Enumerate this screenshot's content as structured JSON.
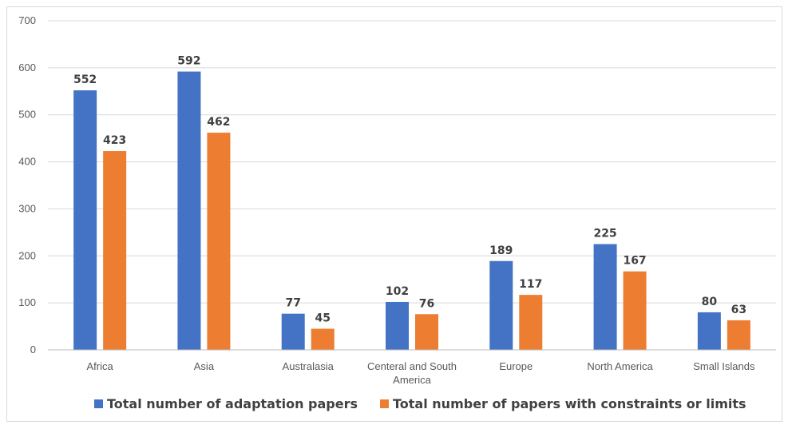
{
  "chart_data": {
    "type": "bar",
    "title": "",
    "xlabel": "",
    "ylabel": "",
    "categories": [
      [
        "Africa"
      ],
      [
        "Asia"
      ],
      [
        "Australasia"
      ],
      [
        "Centeral and South",
        "America"
      ],
      [
        "Europe"
      ],
      [
        "North America"
      ],
      [
        "Small Islands"
      ]
    ],
    "series": [
      {
        "name": "Total number of adaptation papers",
        "color": "#4472C4",
        "values": [
          552,
          592,
          77,
          102,
          189,
          225,
          80
        ]
      },
      {
        "name": "Total number of papers with constraints or limits",
        "color": "#ED7D31",
        "values": [
          423,
          462,
          45,
          76,
          117,
          167,
          63
        ]
      }
    ],
    "ylim": [
      0,
      700
    ],
    "yticks": [
      0,
      100,
      200,
      300,
      400,
      500,
      600,
      700
    ],
    "grid": true,
    "legend_position": "bottom"
  }
}
